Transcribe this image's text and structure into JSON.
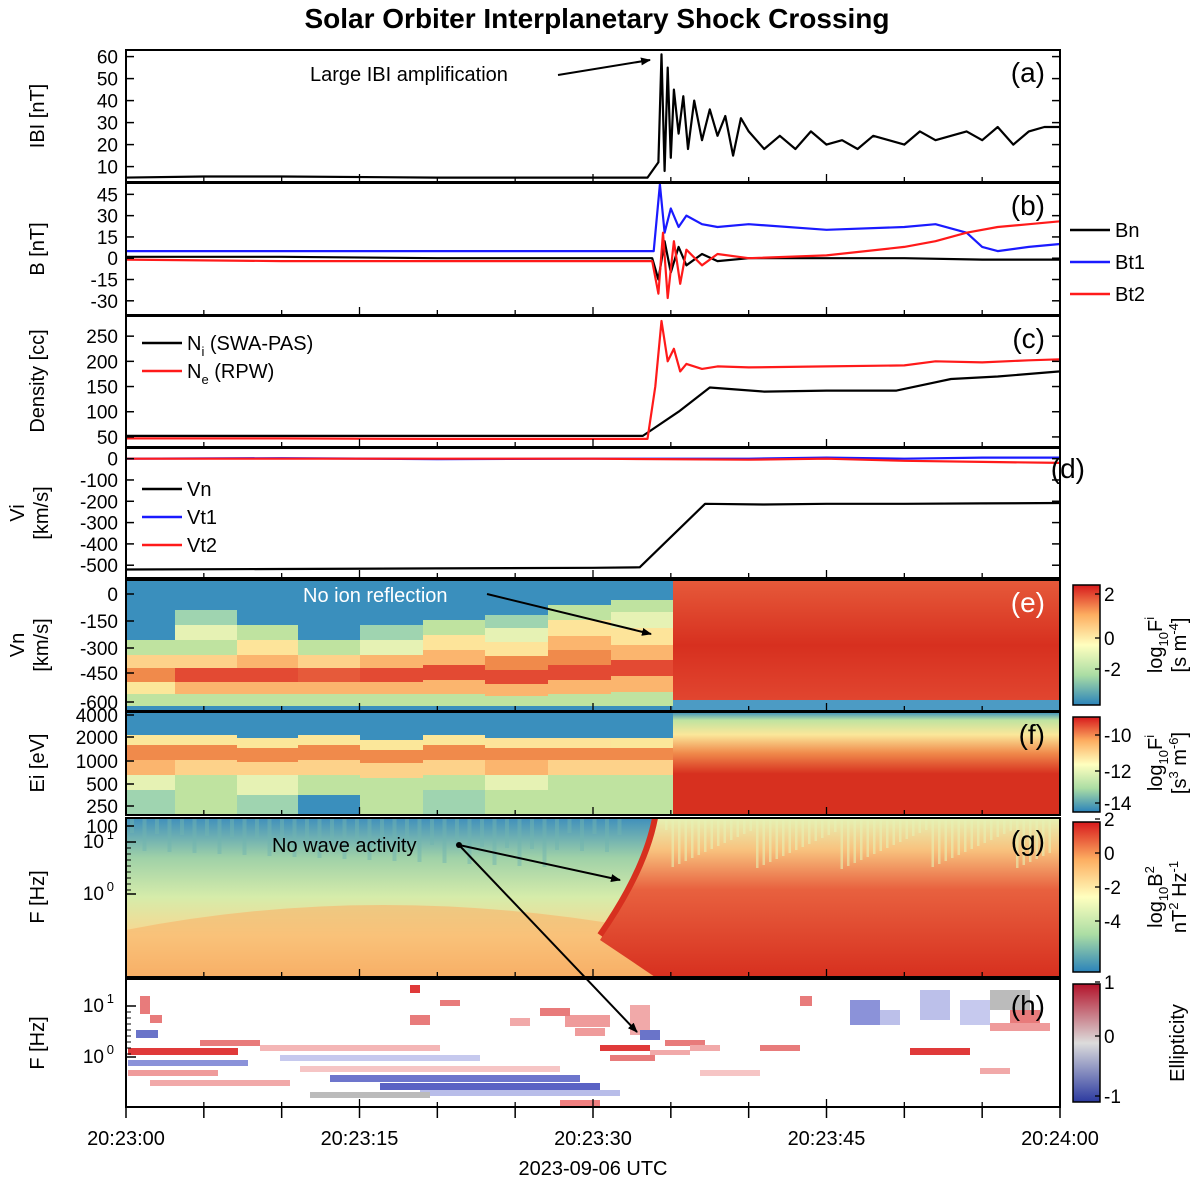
{
  "figure": {
    "title": "Solar Orbiter Interplanetary Shock Crossing",
    "x_ticks": [
      "20:23:00",
      "20:23:15",
      "20:23:30",
      "20:23:45",
      "20:24:00"
    ],
    "x_label": "2023-09-06 UTC"
  },
  "chart_data": [
    {
      "type": "line",
      "panel": "(a)",
      "ylabel": "IBI [nT]",
      "ylim": [
        3,
        63
      ],
      "y_ticks": [
        "10",
        "20",
        "30",
        "40",
        "50",
        "60"
      ],
      "annotation": "Large IBI amplification",
      "x_unit": "seconds after 20:23:00",
      "series": [
        {
          "name": "",
          "color": "#000000",
          "x": [
            0,
            5,
            10,
            20,
            30,
            33.5,
            34.2,
            34.4,
            34.6,
            34.8,
            35.0,
            35.2,
            35.5,
            35.8,
            36.1,
            36.5,
            37,
            37.5,
            38,
            38.5,
            39,
            39.5,
            40,
            41,
            42,
            43,
            44,
            45,
            46,
            47,
            48,
            49,
            50,
            51,
            52,
            53,
            54,
            55,
            56,
            57,
            58,
            59,
            60
          ],
          "y": [
            5,
            5.5,
            5.5,
            5,
            5,
            5,
            12,
            61,
            8,
            55,
            14,
            45,
            25,
            42,
            18,
            40,
            22,
            36,
            24,
            33,
            15,
            32,
            26,
            18,
            24,
            18,
            26,
            20,
            22,
            18,
            24,
            22,
            20,
            26,
            22,
            24,
            26,
            22,
            28,
            20,
            26,
            28,
            28
          ]
        }
      ]
    },
    {
      "type": "line",
      "panel": "(b)",
      "ylabel": "B [nT]",
      "ylim": [
        -40,
        53
      ],
      "y_ticks": [
        "45",
        "30",
        "15",
        "0",
        "-15",
        "-30"
      ],
      "x_unit": "seconds after 20:23:00",
      "series": [
        {
          "name": "Bn",
          "color": "#000000",
          "x": [
            0,
            10,
            20,
            30,
            33.8,
            34.2,
            34.6,
            35.0,
            35.5,
            36.0,
            37,
            38,
            40,
            45,
            50,
            55,
            60
          ],
          "y": [
            1,
            1,
            0,
            0,
            0,
            -15,
            12,
            -10,
            8,
            -5,
            3,
            -2,
            0,
            0,
            0,
            -1,
            -1
          ]
        },
        {
          "name": "Bt1",
          "color": "#1a1aff",
          "x": [
            0,
            10,
            20,
            30,
            33.9,
            34.3,
            34.6,
            35.0,
            35.5,
            36,
            37,
            38,
            40,
            45,
            50,
            52,
            54,
            55,
            56,
            58,
            60
          ],
          "y": [
            5,
            5,
            5,
            5,
            5,
            52,
            18,
            35,
            22,
            30,
            24,
            22,
            24,
            20,
            22,
            24,
            18,
            8,
            5,
            8,
            10
          ]
        },
        {
          "name": "Bt2",
          "color": "#ff1a1a",
          "x": [
            0,
            10,
            20,
            30,
            33.8,
            34.2,
            34.5,
            34.8,
            35.2,
            35.6,
            36,
            37,
            38,
            40,
            45,
            50,
            52,
            54,
            56,
            58,
            60
          ],
          "y": [
            -1,
            -2,
            -2,
            -2,
            -2,
            -25,
            18,
            -28,
            12,
            -18,
            6,
            -5,
            3,
            0,
            2,
            8,
            12,
            18,
            22,
            24,
            26
          ]
        }
      ]
    },
    {
      "type": "line",
      "panel": "(c)",
      "ylabel": "Density [cc]",
      "ylim": [
        30,
        290
      ],
      "y_ticks": [
        "250",
        "200",
        "150",
        "100",
        "50"
      ],
      "x_unit": "seconds after 20:23:00",
      "series": [
        {
          "name": "N_i (SWA-PAS)",
          "name_main": "N",
          "name_sub": "i",
          "name_rest": " (SWA-PAS)",
          "color": "#000000",
          "x": [
            0,
            10,
            20,
            30,
            33.2,
            35.5,
            37.5,
            41,
            45,
            49.5,
            53,
            56,
            60
          ],
          "y": [
            52,
            52,
            52,
            52,
            52,
            100,
            148,
            140,
            142,
            142,
            165,
            170,
            180
          ]
        },
        {
          "name": "N_e (RPW)",
          "name_main": "N",
          "name_sub": "e",
          "name_rest": " (RPW)",
          "color": "#ff1a1a",
          "x": [
            0,
            10,
            20,
            30,
            33.5,
            34.0,
            34.4,
            34.8,
            35.2,
            35.6,
            36,
            37,
            38,
            40,
            45,
            50,
            52,
            55,
            58,
            60
          ],
          "y": [
            47,
            47,
            46,
            46,
            46,
            150,
            280,
            200,
            225,
            180,
            195,
            185,
            190,
            188,
            190,
            192,
            200,
            198,
            202,
            204
          ]
        }
      ]
    },
    {
      "type": "line",
      "panel": "(d)",
      "ylabel": "Vi [km/s]",
      "ylim": [
        -560,
        50
      ],
      "y_ticks": [
        "0",
        "-100",
        "-200",
        "-300",
        "-400",
        "-500"
      ],
      "x_unit": "seconds after 20:23:00",
      "series": [
        {
          "name": "Vn",
          "color": "#000000",
          "x": [
            0,
            10,
            20,
            30,
            33.0,
            37.2,
            41,
            45,
            50,
            55,
            60
          ],
          "y": [
            -520,
            -518,
            -515,
            -512,
            -510,
            -212,
            -215,
            -212,
            -212,
            -210,
            -208
          ]
        },
        {
          "name": "Vt1",
          "color": "#1a1aff",
          "x": [
            0,
            10,
            20,
            30,
            40,
            45,
            50,
            55,
            60
          ],
          "y": [
            0,
            2,
            -2,
            0,
            0,
            5,
            0,
            5,
            5
          ]
        },
        {
          "name": "Vt2",
          "color": "#ff1a1a",
          "x": [
            0,
            10,
            20,
            30,
            40,
            45,
            50,
            55,
            60
          ],
          "y": [
            0,
            0,
            0,
            0,
            -5,
            0,
            -10,
            -15,
            -20
          ]
        }
      ]
    },
    {
      "type": "heatmap",
      "panel": "(e)",
      "ylabel": "Vn [km/s]",
      "y_ticks": [
        "0",
        "-150",
        "-300",
        "-450",
        "-600"
      ],
      "annotation": "No ion reflection",
      "colorbar": {
        "label_main": "log",
        "label_sub": "10",
        "label_after": "F",
        "label_f_sub": "i",
        "label_units": "[s m",
        "label_units_sup": "-4",
        "label_units_end": "]",
        "ticks": [
          "2",
          "0",
          "-2"
        ]
      },
      "note": "Before the shock: banded ion beam around -450 to -600 km/s; after 20:23:35 a broad red distribution."
    },
    {
      "type": "heatmap",
      "panel": "(f)",
      "ylabel": "Ei [eV]",
      "y_ticks": [
        "4000",
        "2000",
        "1000",
        "500",
        "250",
        "100"
      ],
      "colorbar": {
        "label_main": "log",
        "label_sub": "10",
        "label_after": "F",
        "label_f_sub": "i",
        "label_units": "[s",
        "label_units_sup": "3",
        "label_units_mid": " m",
        "label_units_sup2": "-6",
        "label_units_end": "]",
        "ticks": [
          "-10",
          "-12",
          "-14"
        ]
      }
    },
    {
      "type": "heatmap",
      "panel": "(g)",
      "ylabel": "F [Hz]",
      "y_ticks": [
        "10",
        "10"
      ],
      "y_tick_exps": [
        "1",
        "0"
      ],
      "annotation": "No wave activity",
      "colorbar": {
        "label_main": "log",
        "label_sub": "10",
        "label_after": "B",
        "label_after_sup": "2",
        "label_units": "nT",
        "label_units_sup": "2",
        "label_units_mid": " Hz",
        "label_units_sup2": "-1",
        "ticks": [
          "2",
          "0",
          "-2",
          "-4"
        ]
      }
    },
    {
      "type": "heatmap",
      "panel": "(h)",
      "ylabel": "F [Hz]",
      "y_ticks": [
        "10",
        "10"
      ],
      "y_tick_exps": [
        "1",
        "0"
      ],
      "colorbar": {
        "label": "Ellipticity",
        "ticks": [
          "1",
          "0",
          "-1"
        ]
      }
    }
  ]
}
